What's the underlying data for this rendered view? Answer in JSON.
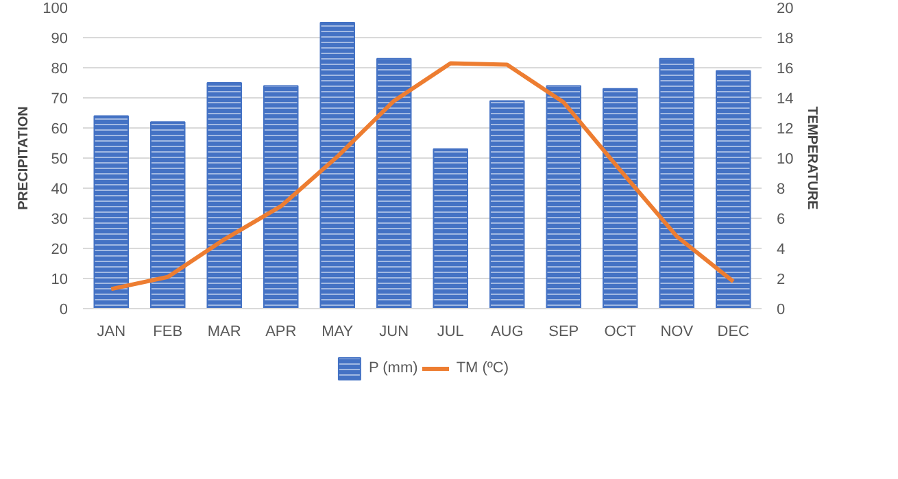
{
  "chart_data": {
    "type": "bar",
    "categories": [
      "JAN",
      "FEB",
      "MAR",
      "APR",
      "MAY",
      "JUN",
      "JUL",
      "AUG",
      "SEP",
      "OCT",
      "NOV",
      "DEC"
    ],
    "ylabel": "PRECIPITATION",
    "y2label": "TEMPERATURE",
    "ylim": [
      0,
      100
    ],
    "yticks": [
      0,
      10,
      20,
      30,
      40,
      50,
      60,
      70,
      80,
      90,
      100
    ],
    "y2lim": [
      0,
      20
    ],
    "y2ticks": [
      0,
      2,
      4,
      6,
      8,
      10,
      12,
      14,
      16,
      18,
      20
    ],
    "grid": "y",
    "legend": "bottom",
    "series": [
      {
        "name": "P (mm)",
        "color": "#4472c4",
        "values": [
          64,
          62,
          75,
          74,
          95,
          83,
          53,
          69,
          74,
          73,
          83,
          79
        ]
      },
      {
        "name": "TM (ºC)",
        "type": "line",
        "axis": "y2",
        "color": "#ed7d31",
        "values": [
          1.3,
          2.1,
          4.6,
          6.8,
          10.1,
          13.8,
          16.3,
          16.2,
          13.7,
          9.2,
          4.8,
          1.8
        ]
      }
    ]
  }
}
